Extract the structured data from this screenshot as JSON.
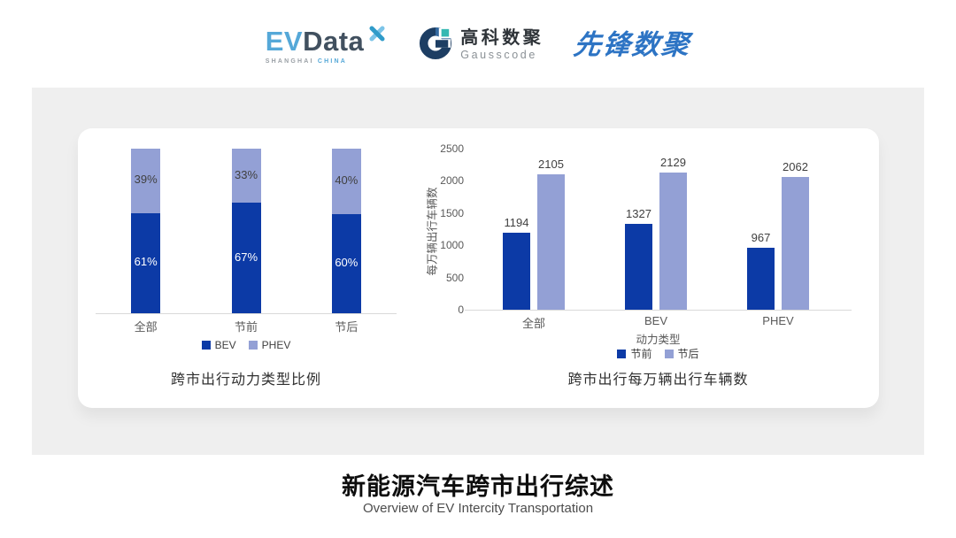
{
  "header": {
    "evdata": {
      "ev": "EV",
      "data": "Data",
      "sub_left": "SHANGHAI",
      "sub_right": "CHINA"
    },
    "gausscode": {
      "cn": "高科数聚",
      "en": "Gausscode"
    },
    "xianfeng": "先锋数聚"
  },
  "colors": {
    "brand_dark_blue": "#0c3aa6",
    "brand_light_purple": "#93a0d5",
    "axis_line": "#d9d9d9",
    "tick_text": "#595959",
    "label_text": "#3f3f3f",
    "evdata_blue": "#55a8d8",
    "evdata_slate": "#41505f",
    "gauss_navy": "#1d3e63",
    "gauss_teal": "#35b8b2",
    "xianfeng_blue": "#2d74c4"
  },
  "chart_data": [
    {
      "type": "bar",
      "variant": "stacked-percent",
      "title": "跨市出行动力类型比例",
      "categories": [
        "全部",
        "节前",
        "节后"
      ],
      "series": [
        {
          "name": "BEV",
          "values": [
            61,
            67,
            60
          ],
          "color": "#0c3aa6",
          "label_color": "#ffffff",
          "label_suffix": "%"
        },
        {
          "name": "PHEV",
          "values": [
            39,
            33,
            40
          ],
          "color": "#93a0d5",
          "label_color": "#404040",
          "label_suffix": "%"
        }
      ],
      "ylim": [
        0,
        100
      ],
      "grid": false,
      "legend_position": "bottom"
    },
    {
      "type": "bar",
      "variant": "grouped",
      "title": "跨市出行每万辆出行车辆数",
      "categories": [
        "全部",
        "BEV",
        "PHEV"
      ],
      "xlabel": "动力类型",
      "ylabel": "每万辆出行车辆数",
      "series": [
        {
          "name": "节前",
          "values": [
            1194,
            1327,
            967
          ],
          "color": "#0c3aa6"
        },
        {
          "name": "节后",
          "values": [
            2105,
            2129,
            2062
          ],
          "color": "#93a0d5"
        }
      ],
      "ylim": [
        0,
        2500
      ],
      "ytick_step": 500,
      "grid": false,
      "legend_position": "bottom"
    }
  ],
  "footer": {
    "title": "新能源汽车跨市出行综述",
    "subtitle": "Overview of EV Intercity Transportation"
  }
}
